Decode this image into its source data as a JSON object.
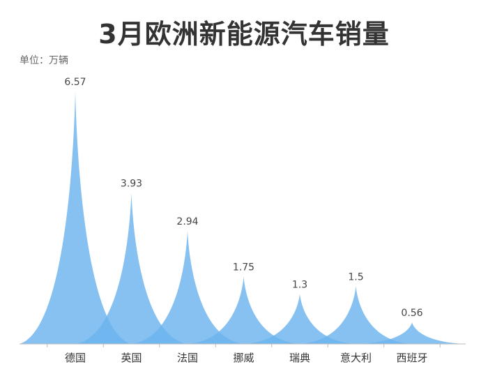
{
  "title": "3月欧洲新能源汽车销量",
  "unit_label": "单位：万辆",
  "colors": {
    "fill": "#6bb3ee",
    "label": "#444444",
    "axis": "#bbbbbb",
    "title": "#333333"
  },
  "chart_data": {
    "type": "bar",
    "shape": "pictorial-spike",
    "title": "3月欧洲新能源汽车销量",
    "ylabel": "单位：万辆",
    "categories": [
      "德国",
      "英国",
      "法国",
      "挪威",
      "瑞典",
      "意大利",
      "西班牙"
    ],
    "values": [
      6.57,
      3.93,
      2.94,
      1.75,
      1.3,
      1.5,
      0.56
    ],
    "value_labels": [
      "6.57",
      "3.93",
      "2.94",
      "1.75",
      "1.3",
      "1.5",
      "0.56"
    ],
    "ylim": [
      0,
      6.57
    ],
    "grid": false,
    "legend": "none"
  }
}
